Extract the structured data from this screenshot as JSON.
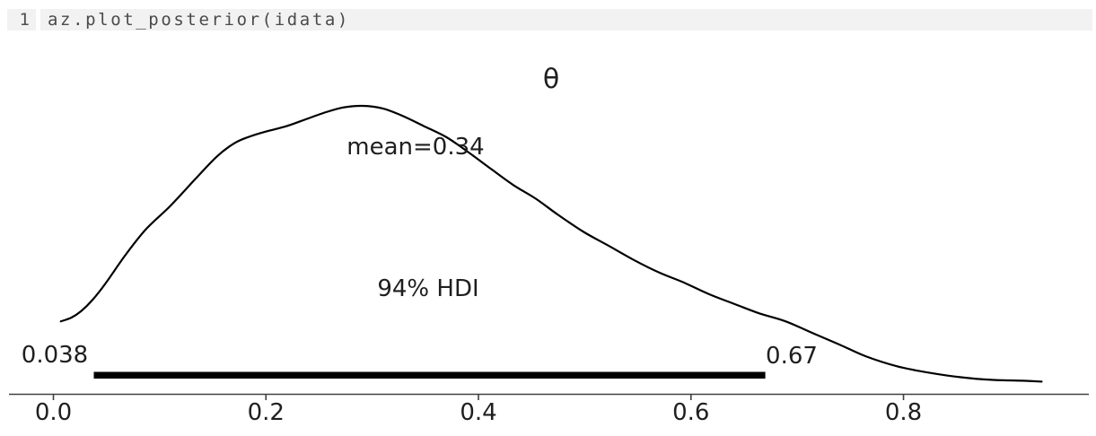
{
  "code_cell": {
    "line_number": "1",
    "code": "az.plot_posterior(idata)"
  },
  "colors": {
    "curve": "#000000",
    "hdi_bar": "#000000",
    "axis": "#404040",
    "text": "#1f1f1f",
    "code_background": "#f2f2f2",
    "code_text": "#4a4a4a"
  },
  "chart_data": {
    "type": "kde",
    "title": "θ",
    "mean": 0.34,
    "mean_label": "mean=0.34",
    "hdi_prob": 0.94,
    "hdi_label": "94% HDI",
    "hdi_low": 0.038,
    "hdi_high": 0.67,
    "hdi_low_label": "0.038",
    "hdi_high_label": "0.67",
    "x_ticks": [
      0.0,
      0.2,
      0.4,
      0.6,
      0.8
    ],
    "x_tick_labels": [
      "0.0",
      "0.2",
      "0.4",
      "0.6",
      "0.8"
    ],
    "xlim": [
      -0.042,
      0.975
    ],
    "grid": false,
    "legend": null,
    "y_axis_shown": false,
    "x": [
      0.007,
      0.017,
      0.026,
      0.037,
      0.049,
      0.068,
      0.087,
      0.11,
      0.133,
      0.154,
      0.171,
      0.185,
      0.201,
      0.218,
      0.235,
      0.254,
      0.272,
      0.291,
      0.31,
      0.328,
      0.348,
      0.37,
      0.391,
      0.412,
      0.433,
      0.454,
      0.475,
      0.499,
      0.522,
      0.546,
      0.57,
      0.593,
      0.617,
      0.641,
      0.664,
      0.689,
      0.714,
      0.74,
      0.765,
      0.794,
      0.824,
      0.854,
      0.883,
      0.913,
      0.93
    ],
    "density_rel": [
      0.253,
      0.266,
      0.288,
      0.328,
      0.384,
      0.484,
      0.572,
      0.653,
      0.744,
      0.825,
      0.872,
      0.894,
      0.912,
      0.928,
      0.95,
      0.975,
      0.994,
      1.0,
      0.991,
      0.966,
      0.931,
      0.891,
      0.838,
      0.781,
      0.725,
      0.678,
      0.622,
      0.563,
      0.516,
      0.466,
      0.422,
      0.388,
      0.347,
      0.313,
      0.281,
      0.253,
      0.213,
      0.172,
      0.131,
      0.097,
      0.075,
      0.059,
      0.05,
      0.047,
      0.044
    ]
  }
}
